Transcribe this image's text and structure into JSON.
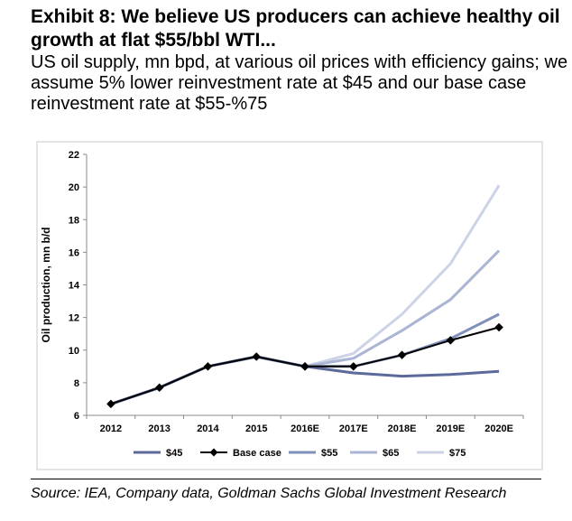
{
  "header": {
    "title": "Exhibit 8: We believe US producers can achieve healthy oil growth at flat $55/bbl WTI...",
    "subtitle": "US oil supply, mn bpd, at various oil prices with efficiency gains; we assume 5% lower reinvestment rate at $45 and our base case reinvestment rate at $55-%75"
  },
  "footer": {
    "source": "Source: IEA, Company data, Goldman Sachs Global Investment Research"
  },
  "chart_data": {
    "type": "line",
    "title": "",
    "xlabel": "",
    "ylabel": "Oil production, mn b/d",
    "categories": [
      "2012",
      "2013",
      "2014",
      "2015",
      "2016E",
      "2017E",
      "2018E",
      "2019E",
      "2020E"
    ],
    "ylim": [
      6,
      22
    ],
    "yticks": [
      6,
      8,
      10,
      12,
      14,
      16,
      18,
      20,
      22
    ],
    "grid": false,
    "legend": "bottom",
    "series": [
      {
        "name": "$45",
        "color": "#5b6a9a",
        "marker": false,
        "values": [
          6.7,
          7.7,
          9.0,
          9.6,
          9.0,
          8.6,
          8.4,
          8.5,
          8.7
        ]
      },
      {
        "name": "Base case",
        "color": "#000000",
        "marker": true,
        "values": [
          null,
          null,
          null,
          null,
          9.0,
          9.0,
          9.7,
          10.6,
          11.4
        ]
      },
      {
        "name": "$55",
        "color": "#8090bd",
        "marker": false,
        "values": [
          6.7,
          7.7,
          9.0,
          9.6,
          9.0,
          9.0,
          9.7,
          10.7,
          12.2
        ]
      },
      {
        "name": "$65",
        "color": "#aab4d3",
        "marker": false,
        "values": [
          6.7,
          7.7,
          9.0,
          9.6,
          9.0,
          9.5,
          11.2,
          13.1,
          16.1
        ]
      },
      {
        "name": "$75",
        "color": "#cdd3e6",
        "marker": false,
        "values": [
          6.7,
          7.7,
          9.0,
          9.6,
          9.0,
          9.8,
          12.2,
          15.3,
          20.1
        ]
      },
      {
        "name": "history",
        "color": "#000000",
        "marker": true,
        "legend": false,
        "values": [
          6.7,
          7.7,
          9.0,
          9.6,
          9.0,
          null,
          null,
          null,
          null
        ]
      }
    ]
  }
}
